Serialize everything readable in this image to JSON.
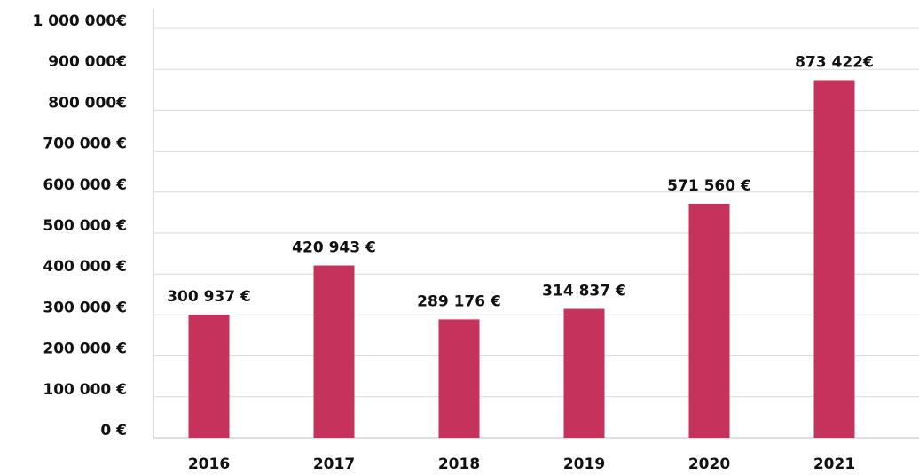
{
  "chart_data": {
    "type": "bar",
    "categories": [
      "2016",
      "2017",
      "2018",
      "2019",
      "2020",
      "2021"
    ],
    "values": [
      300937,
      420943,
      289176,
      314837,
      571560,
      873422
    ],
    "value_labels": [
      "300 937 €",
      "420 943 €",
      "289 176 €",
      "314 837 €",
      "571 560 €",
      "873 422€"
    ],
    "color": "#c5325b",
    "ylim": [
      0,
      1000000
    ],
    "yticks": [
      {
        "value": 0,
        "label": "0 €"
      },
      {
        "value": 100000,
        "label": "100 000 €"
      },
      {
        "value": 200000,
        "label": "200 000 €"
      },
      {
        "value": 300000,
        "label": "300 000 €"
      },
      {
        "value": 400000,
        "label": "400 000 €"
      },
      {
        "value": 500000,
        "label": "500 000 €"
      },
      {
        "value": 600000,
        "label": "600 000 €"
      },
      {
        "value": 700000,
        "label": "700 000 €"
      },
      {
        "value": 800000,
        "label": "800 000€"
      },
      {
        "value": 900000,
        "label": "900 000€"
      },
      {
        "value": 1000000,
        "label": "1 000 000€"
      }
    ],
    "grid": true
  }
}
